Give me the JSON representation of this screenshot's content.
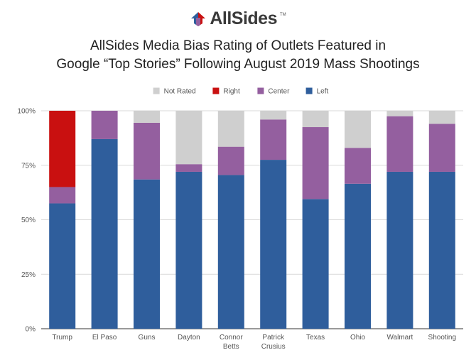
{
  "logo": {
    "text": "AllSides",
    "tm": "TM"
  },
  "header": {
    "title_line1": "AllSides Media Bias Rating of Outlets Featured in",
    "title_line2": "Google “Top Stories” Following August 2019 Mass Shootings"
  },
  "colors": {
    "Left": "#2f5e9c",
    "Center": "#945f9f",
    "Right": "#c91010",
    "Not Rated": "#cfcfcf"
  },
  "chart_data": {
    "type": "bar",
    "stacked": true,
    "title": "AllSides Media Bias Rating of Outlets Featured in Google “Top Stories” Following August 2019 Mass Shootings",
    "categories": [
      [
        "Trump"
      ],
      [
        "El Paso"
      ],
      [
        "Guns"
      ],
      [
        "Dayton"
      ],
      [
        "Connor",
        "Betts"
      ],
      [
        "Patrick",
        "Crusius"
      ],
      [
        "Texas"
      ],
      [
        "Ohio"
      ],
      [
        "Walmart"
      ],
      [
        "Shooting"
      ]
    ],
    "series": [
      {
        "name": "Left",
        "values": [
          57.5,
          87,
          68.5,
          72,
          70.5,
          77.5,
          59.5,
          66.5,
          72,
          72
        ]
      },
      {
        "name": "Center",
        "values": [
          7.5,
          13,
          26,
          3.5,
          13,
          18.5,
          33,
          16.5,
          25.5,
          22
        ]
      },
      {
        "name": "Right",
        "values": [
          35,
          0,
          0,
          0,
          0,
          0,
          0,
          0,
          0,
          0
        ]
      },
      {
        "name": "Not Rated",
        "values": [
          0,
          0,
          5.5,
          24.5,
          16.5,
          4,
          7.5,
          17,
          2.5,
          6
        ]
      }
    ],
    "legend_order": [
      "Not Rated",
      "Right",
      "Center",
      "Left"
    ],
    "legend_position": "top",
    "yticks": [
      "0%",
      "25%",
      "50%",
      "75%",
      "100%"
    ],
    "yticks_values": [
      0,
      25,
      50,
      75,
      100
    ],
    "ylim": [
      0,
      100
    ],
    "xlabel": "",
    "ylabel": ""
  }
}
